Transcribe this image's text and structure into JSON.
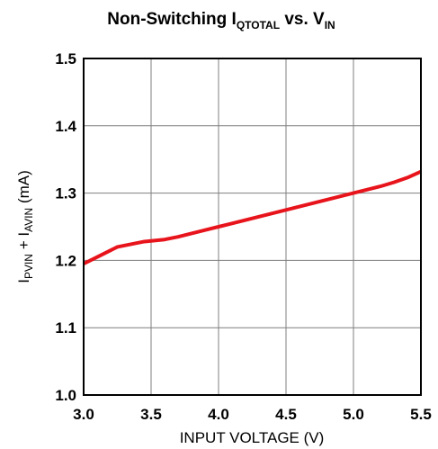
{
  "chart_data": {
    "type": "line",
    "title": {
      "prefix": "Non-Switching I",
      "prefix_sub": "QTOTAL",
      "middle": " vs. V",
      "middle_sub": "IN"
    },
    "xlabel": "INPUT VOLTAGE (V)",
    "ylabel": {
      "part1": "I",
      "part1_sub": "PVIN",
      "part2": " + I",
      "part2_sub": "AVIN",
      "part3": " (mA)"
    },
    "xlim": [
      3.0,
      5.5
    ],
    "ylim": [
      1.0,
      1.5
    ],
    "x_ticks": [
      "3.0",
      "3.5",
      "4.0",
      "4.5",
      "5.0",
      "5.5"
    ],
    "y_ticks": [
      "1.0",
      "1.1",
      "1.2",
      "1.3",
      "1.4",
      "1.5"
    ],
    "grid": true,
    "series": [
      {
        "color": "#e8141c",
        "x": [
          3.0,
          3.1,
          3.2,
          3.25,
          3.35,
          3.45,
          3.55,
          3.6,
          3.7,
          3.8,
          3.9,
          4.0,
          4.1,
          4.2,
          4.3,
          4.4,
          4.5,
          4.6,
          4.7,
          4.8,
          4.9,
          5.0,
          5.1,
          5.2,
          5.3,
          5.4,
          5.5
        ],
        "y": [
          1.195,
          1.205,
          1.215,
          1.22,
          1.224,
          1.228,
          1.23,
          1.231,
          1.235,
          1.24,
          1.245,
          1.25,
          1.255,
          1.26,
          1.265,
          1.27,
          1.275,
          1.28,
          1.285,
          1.29,
          1.295,
          1.3,
          1.305,
          1.31,
          1.316,
          1.323,
          1.332
        ]
      }
    ]
  }
}
